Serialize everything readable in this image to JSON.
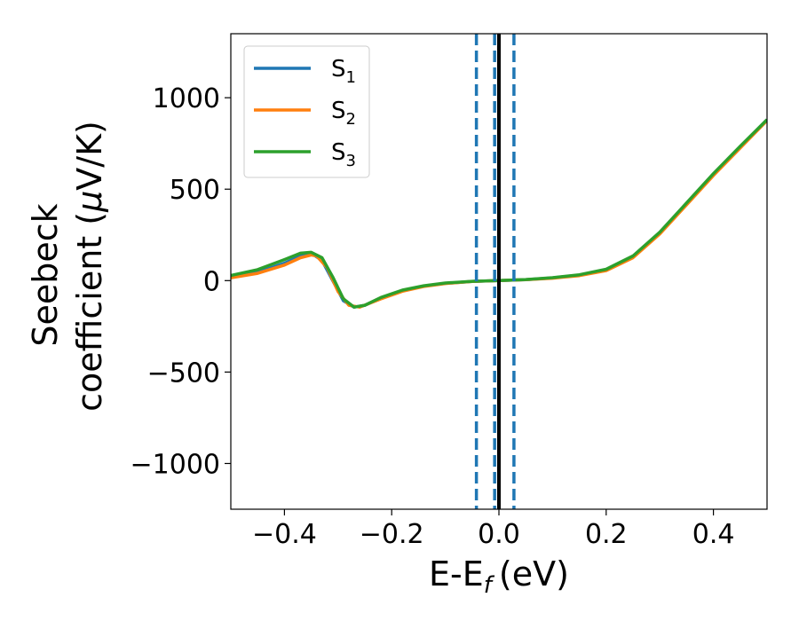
{
  "chart_data": {
    "type": "line",
    "xlabel": "E-E",
    "xlabel_sub": "f",
    "xlabel_unit": "(eV)",
    "ylabel_line1": "Seebeck",
    "ylabel_line2": "coefficient  (",
    "ylabel_mu": "μ",
    "ylabel_unit": "V/K)",
    "xlim": [
      -0.5,
      0.5
    ],
    "ylim": [
      -1250,
      1350
    ],
    "xticks": [
      -0.4,
      -0.2,
      0.0,
      0.2,
      0.4
    ],
    "xtick_labels": [
      "−0.4",
      "−0.2",
      "0.0",
      "0.2",
      "0.4"
    ],
    "yticks": [
      -1000,
      -500,
      0,
      500,
      1000
    ],
    "ytick_labels": [
      "−1000",
      "−500",
      "0",
      "500",
      "1000"
    ],
    "grid": false,
    "legend_position": "top-left",
    "vlines": [
      {
        "x": -0.042,
        "style": "dashed",
        "color": "#1f77b4"
      },
      {
        "x": -0.008,
        "style": "dashed",
        "color": "#1f77b4"
      },
      {
        "x": 0.028,
        "style": "dashed",
        "color": "#1f77b4"
      },
      {
        "x": 0.0,
        "style": "solid",
        "color": "#000000"
      }
    ],
    "series": [
      {
        "name": "S",
        "sub": "1",
        "color": "#1f77b4",
        "x": [
          -0.5,
          -0.45,
          -0.4,
          -0.37,
          -0.35,
          -0.33,
          -0.31,
          -0.29,
          -0.27,
          -0.25,
          -0.22,
          -0.18,
          -0.14,
          -0.1,
          -0.05,
          0.0,
          0.05,
          0.1,
          0.15,
          0.2,
          0.25,
          0.3,
          0.35,
          0.4,
          0.45,
          0.5
        ],
        "y": [
          20,
          45,
          95,
          135,
          150,
          110,
          0,
          -110,
          -145,
          -135,
          -95,
          -55,
          -30,
          -15,
          -5,
          0,
          5,
          15,
          30,
          60,
          130,
          260,
          420,
          580,
          730,
          880
        ]
      },
      {
        "name": "S",
        "sub": "2",
        "color": "#ff7f0e",
        "x": [
          -0.5,
          -0.45,
          -0.4,
          -0.37,
          -0.35,
          -0.34,
          -0.32,
          -0.3,
          -0.28,
          -0.26,
          -0.22,
          -0.18,
          -0.14,
          -0.1,
          -0.05,
          0.0,
          0.05,
          0.1,
          0.15,
          0.2,
          0.25,
          0.3,
          0.35,
          0.4,
          0.45,
          0.5
        ],
        "y": [
          15,
          40,
          85,
          125,
          140,
          135,
          70,
          -60,
          -135,
          -145,
          -100,
          -58,
          -32,
          -16,
          -5,
          0,
          5,
          13,
          27,
          55,
          125,
          255,
          415,
          575,
          725,
          875
        ]
      },
      {
        "name": "S",
        "sub": "3",
        "color": "#2ca02c",
        "x": [
          -0.5,
          -0.45,
          -0.4,
          -0.37,
          -0.35,
          -0.33,
          -0.31,
          -0.29,
          -0.27,
          -0.25,
          -0.22,
          -0.18,
          -0.14,
          -0.1,
          -0.05,
          0.0,
          0.05,
          0.1,
          0.15,
          0.2,
          0.25,
          0.3,
          0.35,
          0.4,
          0.45,
          0.5
        ],
        "y": [
          28,
          60,
          115,
          150,
          155,
          125,
          20,
          -100,
          -145,
          -135,
          -92,
          -52,
          -28,
          -13,
          -4,
          0,
          6,
          16,
          32,
          62,
          135,
          265,
          425,
          585,
          735,
          880
        ]
      }
    ]
  }
}
